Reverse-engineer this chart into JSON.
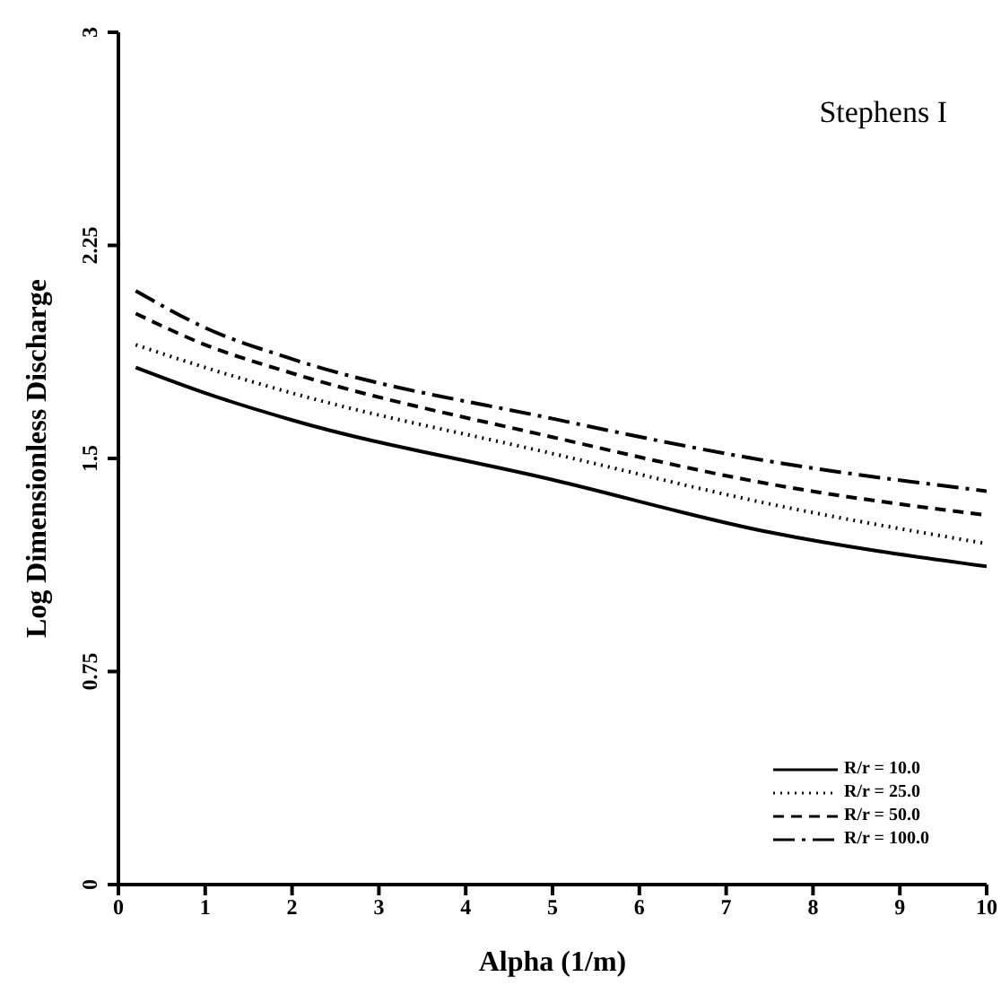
{
  "chart_data": {
    "type": "line",
    "xlabel": "Alpha (1/m)",
    "ylabel": "Log Dimensionless Discharge",
    "annotations": [
      "Stephens I"
    ],
    "x": [
      0.2,
      1,
      2,
      5,
      7.5,
      10
    ],
    "series": [
      {
        "name": "R/r = 10.0",
        "color": "#000000",
        "line_style": "solid",
        "values": [
          1.82,
          1.73,
          1.635,
          1.425,
          1.24,
          1.12
        ]
      },
      {
        "name": "R/r = 25.0",
        "color": "#000000",
        "line_style": "dotted",
        "values": [
          1.9,
          1.82,
          1.73,
          1.517,
          1.34,
          1.2
        ]
      },
      {
        "name": "R/r = 50.0",
        "color": "#000000",
        "line_style": "dashed",
        "values": [
          2.01,
          1.9,
          1.8,
          1.575,
          1.41,
          1.3
        ]
      },
      {
        "name": "R/r = 100.0",
        "color": "#000000",
        "line_style": "dashdot",
        "values": [
          2.09,
          1.96,
          1.85,
          1.64,
          1.49,
          1.385
        ]
      }
    ],
    "xlim": [
      0,
      10
    ],
    "xticks": [
      0,
      1,
      2,
      3,
      4,
      5,
      6,
      7,
      8,
      9,
      10
    ],
    "ylim": [
      0,
      3
    ],
    "yticks": [
      0,
      0.75,
      1.5,
      2.25,
      3
    ],
    "grid": false,
    "legend": "bottom right",
    "marker": "none"
  }
}
